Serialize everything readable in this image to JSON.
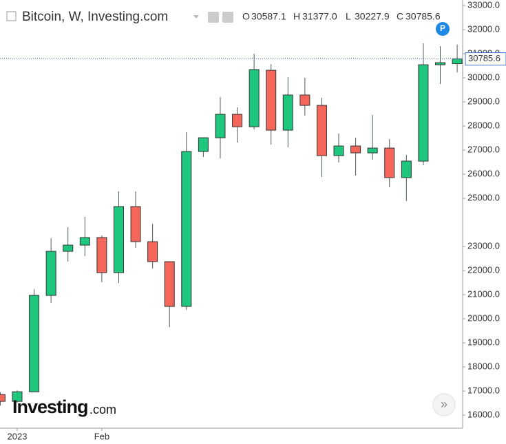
{
  "chart_data": {
    "type": "candlestick",
    "title": "Bitcoin, W, Investing.com",
    "ohlc_header": [
      {
        "key": "O",
        "value": "30587.1"
      },
      {
        "key": "H",
        "value": "31377.0"
      },
      {
        "key": "L",
        "value": "30227.9"
      },
      {
        "key": "C",
        "value": "30785.6"
      }
    ],
    "categories": [
      null,
      "2023",
      null,
      null,
      null,
      null,
      "Feb",
      null,
      null,
      null,
      null,
      null,
      null,
      null,
      null,
      null,
      null,
      null,
      null,
      null,
      null,
      null,
      null,
      null,
      null,
      null,
      null,
      null
    ],
    "open": [
      16857,
      16571,
      16971,
      20971,
      22800,
      23057,
      23371,
      21914,
      24657,
      23200,
      22371,
      20514,
      26943,
      27514,
      28486,
      27971,
      30314,
      27829,
      29286,
      28857,
      26771,
      27171,
      26886,
      27086,
      25857,
      26543,
      30543,
      30587.1
    ],
    "high": [
      16950,
      17029,
      21229,
      23343,
      23800,
      24229,
      23457,
      25286,
      25286,
      23943,
      22371,
      27743,
      27514,
      29200,
      28771,
      31000,
      30571,
      30029,
      30000,
      29171,
      27686,
      27514,
      28457,
      27457,
      26800,
      31429,
      31314,
      31377
    ],
    "low": [
      16400,
      16514,
      16971,
      20657,
      22371,
      22600,
      21514,
      21486,
      22943,
      22086,
      19657,
      20371,
      26714,
      26657,
      27314,
      27857,
      27229,
      27114,
      28429,
      25886,
      26486,
      25943,
      26600,
      25457,
      24886,
      26371,
      29743,
      30227.9
    ],
    "close": [
      16571,
      16971,
      20971,
      22800,
      23057,
      23371,
      21914,
      24657,
      23200,
      22371,
      20514,
      26943,
      27514,
      28486,
      27971,
      30343,
      27829,
      29286,
      28857,
      26771,
      27171,
      26886,
      27086,
      25857,
      26543,
      30543,
      30629,
      30785.6
    ],
    "up_color": "#1fc77e",
    "down_color": "#f4665a",
    "ylim": [
      15460,
      33230
    ],
    "yticks": [
      {
        "value": 16000,
        "label": "16000.0"
      },
      {
        "value": 17000,
        "label": "17000.0"
      },
      {
        "value": 18000,
        "label": "18000.0"
      },
      {
        "value": 19000,
        "label": "19000.0"
      },
      {
        "value": 20000,
        "label": "20000.0"
      },
      {
        "value": 21000,
        "label": "21000.0"
      },
      {
        "value": 22000,
        "label": "22000.0"
      },
      {
        "value": 23000,
        "label": "23000.0"
      },
      {
        "value": 25000,
        "label": "25000.0"
      },
      {
        "value": 26000,
        "label": "26000.0"
      },
      {
        "value": 27000,
        "label": "27000.0"
      },
      {
        "value": 28000,
        "label": "28000.0"
      },
      {
        "value": 29000,
        "label": "29000.0"
      },
      {
        "value": 30000,
        "label": "30000.0"
      },
      {
        "value": 31000,
        "label": "31000.0"
      },
      {
        "value": 32000,
        "label": "32000.0"
      },
      {
        "value": 33000,
        "label": "33000.0"
      }
    ],
    "badge": "P",
    "watermark": [
      "Investing",
      ".com"
    ],
    "scroll_button": "»"
  }
}
